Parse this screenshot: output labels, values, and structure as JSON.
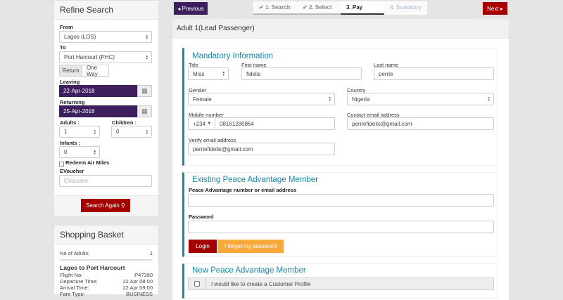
{
  "refine": {
    "title": "Refine Search",
    "from_label": "From",
    "from_value": "Lagos (LOS)",
    "to_label": "To",
    "to_value": "Port Harcourt (PHC)",
    "trip_return": "Return",
    "trip_oneway": "One Way",
    "leaving_label": "Leaving",
    "leaving_value": "22-Apr-2018",
    "returning_label": "Returning",
    "returning_value": "25-Apr-2018",
    "adults_label": "Adults :",
    "adults_value": "1",
    "children_label": "Children :",
    "children_value": "0",
    "infants_label": "Infants :",
    "infants_value": "0",
    "redeem_label": "Redeem Air Miles",
    "evoucher_label": "EVoucher",
    "evoucher_placeholder": "EVoucher",
    "search_button": "Search Again"
  },
  "basket": {
    "title": "Shopping Basket",
    "adults_label": "No of Adults:",
    "adults_value": "1",
    "route": "Lagos to Port Harcourt",
    "rows": [
      {
        "k": "Flight No:",
        "v": "P47390"
      },
      {
        "k": "Departure Time:",
        "v": "22 Apr 08:00"
      },
      {
        "k": "Arrival Time:",
        "v": "22 Apr 09:00"
      },
      {
        "k": "Fare Type:",
        "v": "BUSINESS"
      }
    ]
  },
  "nav": {
    "previous": "Previous",
    "next": "Next",
    "steps": [
      "1. Search",
      "2. Select",
      "3. Pay",
      "4. Summary"
    ],
    "active_step": 3
  },
  "main": {
    "title": "Adult 1(Lead Passenger)"
  },
  "mandatory": {
    "title": "Mandatory Information",
    "title_label": "Title",
    "title_value": "Miss",
    "first_label": "First name",
    "first_value": "fidelis",
    "last_label": "Last name",
    "last_value": "perrie",
    "gender_label": "Gender",
    "gender_value": "Female",
    "country_label": "Country",
    "country_value": "Nigeria",
    "mobile_label": "Mobile number",
    "dial_code": "+234",
    "mobile_value": "08161280864",
    "contact_label": "Contact email address",
    "contact_value": "perriefidelis@gmail.com",
    "verify_label": "Verify email address",
    "verify_value": "perriefidelis@gmail.com"
  },
  "existing": {
    "title": "Existing Peace Advantage Member",
    "number_label": "Peace Advantage number or email address",
    "password_label": "Password",
    "login": "Login",
    "forgot": "I forgot my password"
  },
  "newmember": {
    "title": "New Peace Advantage Member",
    "checkbox_label": "I would like to create a Customer Profile"
  },
  "colors": {
    "purple": "#3d1f5e",
    "red": "#a50000",
    "teal": "#1a87a8",
    "orange": "#f9a93b"
  }
}
